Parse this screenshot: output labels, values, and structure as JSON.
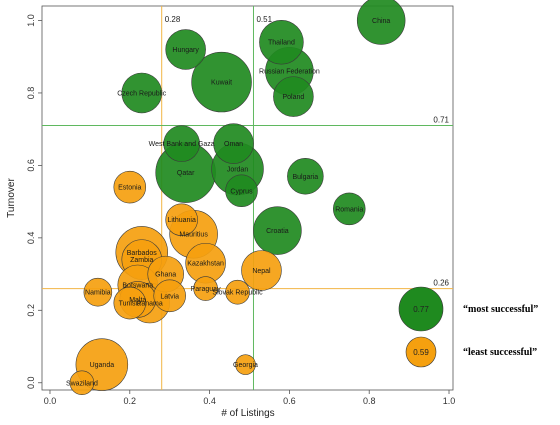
{
  "chart_data": {
    "type": "scatter",
    "xlabel": "# of Listings",
    "ylabel": "Turnover",
    "xlim": [
      -0.02,
      1.01
    ],
    "ylim": [
      -0.02,
      1.04
    ],
    "xticks": [
      0.0,
      0.2,
      0.4,
      0.6,
      0.8,
      1.0
    ],
    "yticks": [
      0.0,
      0.2,
      0.4,
      0.6,
      0.8,
      1.0
    ],
    "xtick_labels": [
      "0.0",
      "0.2",
      "0.4",
      "0.6",
      "0.8",
      "1.0"
    ],
    "ytick_labels": [
      "0.0",
      "0.2",
      "0.4",
      "0.6",
      "0.8",
      "1.0"
    ],
    "colors": {
      "green": "#1f8a1f",
      "orange": "#f5a00f",
      "green_line": "#5fb85f",
      "orange_line": "#f2b544"
    },
    "reference_lines": [
      {
        "orientation": "vertical",
        "value": 0.28,
        "label": "0.28",
        "color": "orange"
      },
      {
        "orientation": "vertical",
        "value": 0.51,
        "label": "0.51",
        "color": "green"
      },
      {
        "orientation": "horizontal",
        "value": 0.71,
        "label": "0.71",
        "color": "green"
      },
      {
        "orientation": "horizontal",
        "value": 0.26,
        "label": "0.26",
        "color": "orange"
      }
    ],
    "points": [
      {
        "label": "China",
        "x": 0.83,
        "y": 1.0,
        "r": 0.06,
        "group": "green"
      },
      {
        "label": "Thailand",
        "x": 0.58,
        "y": 0.94,
        "r": 0.055,
        "group": "green"
      },
      {
        "label": "Hungary",
        "x": 0.34,
        "y": 0.92,
        "r": 0.05,
        "group": "green"
      },
      {
        "label": "Russian Federation",
        "x": 0.6,
        "y": 0.86,
        "r": 0.06,
        "group": "green"
      },
      {
        "label": "Kuwait",
        "x": 0.43,
        "y": 0.83,
        "r": 0.075,
        "group": "green"
      },
      {
        "label": "Czech Republic",
        "x": 0.23,
        "y": 0.8,
        "r": 0.05,
        "group": "green"
      },
      {
        "label": "Poland",
        "x": 0.61,
        "y": 0.79,
        "r": 0.05,
        "group": "green"
      },
      {
        "label": "West Bank and Gaza",
        "x": 0.33,
        "y": 0.66,
        "r": 0.045,
        "group": "green"
      },
      {
        "label": "Oman",
        "x": 0.46,
        "y": 0.66,
        "r": 0.05,
        "group": "green"
      },
      {
        "label": "Jordan",
        "x": 0.47,
        "y": 0.59,
        "r": 0.065,
        "group": "green"
      },
      {
        "label": "Qatar",
        "x": 0.34,
        "y": 0.58,
        "r": 0.075,
        "group": "green"
      },
      {
        "label": "Bulgaria",
        "x": 0.64,
        "y": 0.57,
        "r": 0.045,
        "group": "green"
      },
      {
        "label": "Cyprus",
        "x": 0.48,
        "y": 0.53,
        "r": 0.04,
        "group": "green"
      },
      {
        "label": "Romania",
        "x": 0.75,
        "y": 0.48,
        "r": 0.04,
        "group": "green"
      },
      {
        "label": "Croatia",
        "x": 0.57,
        "y": 0.42,
        "r": 0.06,
        "group": "green"
      },
      {
        "label": "Estonia",
        "x": 0.2,
        "y": 0.54,
        "r": 0.04,
        "group": "orange"
      },
      {
        "label": "Lithuania",
        "x": 0.33,
        "y": 0.45,
        "r": 0.04,
        "group": "orange"
      },
      {
        "label": "Mauritius",
        "x": 0.36,
        "y": 0.41,
        "r": 0.06,
        "group": "orange"
      },
      {
        "label": "Barbados",
        "x": 0.23,
        "y": 0.36,
        "r": 0.065,
        "group": "orange"
      },
      {
        "label": "Zambia",
        "x": 0.23,
        "y": 0.34,
        "r": 0.05,
        "group": "orange"
      },
      {
        "label": "Kazakhstan",
        "x": 0.39,
        "y": 0.33,
        "r": 0.05,
        "group": "orange"
      },
      {
        "label": "Ghana",
        "x": 0.29,
        "y": 0.3,
        "r": 0.045,
        "group": "orange"
      },
      {
        "label": "Nepal",
        "x": 0.53,
        "y": 0.31,
        "r": 0.05,
        "group": "orange"
      },
      {
        "label": "Namibia",
        "x": 0.12,
        "y": 0.25,
        "r": 0.035,
        "group": "orange"
      },
      {
        "label": "Botswana",
        "x": 0.22,
        "y": 0.27,
        "r": 0.05,
        "group": "orange"
      },
      {
        "label": "Paraguay",
        "x": 0.39,
        "y": 0.26,
        "r": 0.03,
        "group": "orange"
      },
      {
        "label": "Slovak Republic",
        "x": 0.47,
        "y": 0.25,
        "r": 0.03,
        "group": "orange"
      },
      {
        "label": "Latvia",
        "x": 0.3,
        "y": 0.24,
        "r": 0.04,
        "group": "orange"
      },
      {
        "label": "Malta",
        "x": 0.22,
        "y": 0.23,
        "r": 0.045,
        "group": "orange"
      },
      {
        "label": "Panama",
        "x": 0.25,
        "y": 0.22,
        "r": 0.05,
        "group": "orange"
      },
      {
        "label": "Tunisia",
        "x": 0.2,
        "y": 0.22,
        "r": 0.04,
        "group": "orange"
      },
      {
        "label": "Uganda",
        "x": 0.13,
        "y": 0.05,
        "r": 0.065,
        "group": "orange"
      },
      {
        "label": "Swaziland",
        "x": 0.08,
        "y": 0.0,
        "r": 0.03,
        "group": "orange"
      },
      {
        "label": "Georgia",
        "x": 0.49,
        "y": 0.05,
        "r": 0.025,
        "group": "orange"
      }
    ],
    "legend": [
      {
        "group": "green",
        "value_label": "0.77",
        "text": "“most successful”"
      },
      {
        "group": "orange",
        "value_label": "0.59",
        "text": "“least successful”"
      }
    ]
  }
}
